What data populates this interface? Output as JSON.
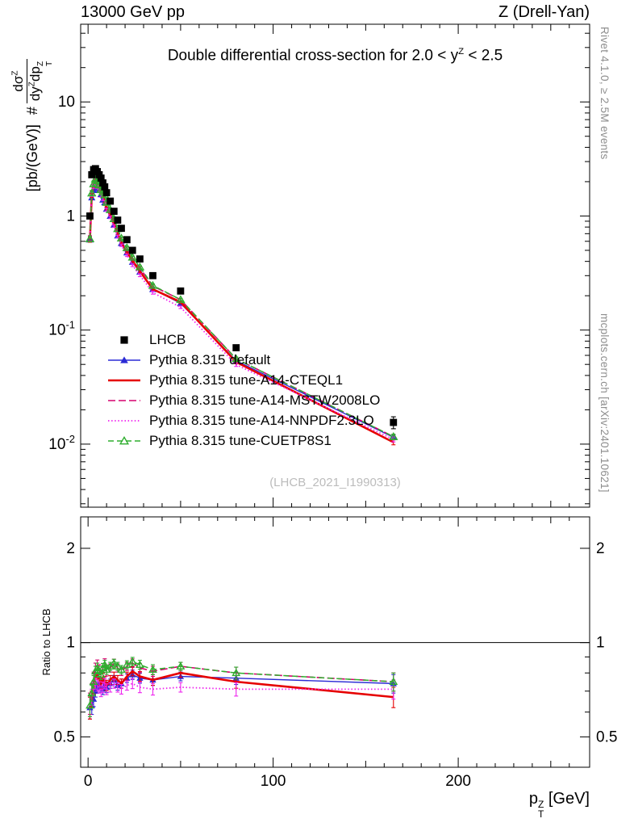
{
  "header": {
    "left": "13000 GeV pp",
    "right": "Z (Drell-Yan)"
  },
  "labels": {
    "plot_title": {
      "pre": "Double differential cross-section for 2.0 < y",
      "sup": "Z",
      "post": " < 2.5"
    },
    "ylabel": {
      "hash": "#",
      "num_base": "dσ",
      "num_sup": "Z",
      "den1_base": "dy",
      "den1_sup": "Z",
      "den2_base": "dp",
      "den2_sup": "Z",
      "den2_sub": "T",
      "units": "[pb/(GeV)]"
    },
    "xlabel": {
      "base": "p",
      "sup": "Z",
      "sub": "T",
      "units": " [GeV]"
    },
    "ratio_ylabel": "Ratio to LHCB",
    "watermark": "(LHCB_2021_I1990313)",
    "side_top": "Rivet 4.1.0, ≥ 2.5M events",
    "side_bottom": "mcplots.cern.ch [arXiv:2401.10621]"
  },
  "chart_data": {
    "type": "line",
    "title": "Double differential cross-section for 2.0 < y^Z < 2.5",
    "xlabel": "p_T^Z [GeV]",
    "ylabel": "# dσ^Z/(dy^Z dp_T^Z) [pb/(GeV)]",
    "ratio_label": "Ratio to LHCB",
    "legend_position": "inside-left",
    "grid": false,
    "x_axis": {
      "lim": [
        -4,
        271
      ],
      "minor_step": 10,
      "ticks": [
        {
          "v": 0,
          "t": "0"
        },
        {
          "v": 100,
          "t": "100"
        },
        {
          "v": 200,
          "t": "200"
        }
      ]
    },
    "y_axis": {
      "log": true,
      "lim": [
        0.0028,
        48
      ],
      "ticks": [
        {
          "v": 10,
          "t": "10"
        },
        {
          "v": 1,
          "t": "1"
        },
        {
          "v": 0.1,
          "t": "10",
          "e": "-1"
        },
        {
          "v": 0.01,
          "t": "10",
          "e": "-2"
        }
      ]
    },
    "ratio_axis": {
      "log": true,
      "lim": [
        0.4,
        2.52
      ],
      "ticks": [
        {
          "v": 2,
          "t": "2"
        },
        {
          "v": 1,
          "t": "1"
        },
        {
          "v": 0.5,
          "t": "0.5"
        }
      ],
      "minor": [
        0.6,
        0.7,
        0.8,
        0.9
      ]
    },
    "x": [
      1,
      2,
      3,
      4,
      5,
      6,
      7,
      8,
      9,
      10,
      12,
      14,
      16,
      18,
      21,
      24,
      28,
      35,
      50,
      80,
      165
    ],
    "data_series": {
      "name": "LHCB",
      "color": "#000000",
      "marker": "square",
      "y": [
        1.0,
        2.3,
        2.55,
        2.6,
        2.45,
        2.3,
        2.15,
        1.95,
        1.8,
        1.6,
        1.35,
        1.1,
        0.92,
        0.78,
        0.62,
        0.5,
        0.42,
        0.3,
        0.22,
        0.07,
        0.0155
      ],
      "yerr_frac": [
        0.05,
        0.04,
        0.04,
        0.035,
        0.035,
        0.035,
        0.035,
        0.035,
        0.035,
        0.035,
        0.03,
        0.03,
        0.03,
        0.03,
        0.03,
        0.03,
        0.035,
        0.035,
        0.03,
        0.05,
        0.12
      ]
    },
    "ratio_err": [
      0.05,
      0.04,
      0.035,
      0.03,
      0.03,
      0.03,
      0.028,
      0.028,
      0.028,
      0.028,
      0.025,
      0.025,
      0.025,
      0.025,
      0.025,
      0.027,
      0.028,
      0.03,
      0.025,
      0.035,
      0.05
    ],
    "mc_series": [
      {
        "name": "Pythia 8.315 default",
        "color": "#2b2bd5",
        "dash": "",
        "width": 1.4,
        "marker": "triangle",
        "ratio": [
          0.62,
          0.63,
          0.66,
          0.7,
          0.72,
          0.74,
          0.72,
          0.71,
          0.73,
          0.72,
          0.74,
          0.76,
          0.73,
          0.74,
          0.77,
          0.79,
          0.77,
          0.76,
          0.78,
          0.77,
          0.74
        ]
      },
      {
        "name": "Pythia 8.315 tune-A14-CTEQL1",
        "color": "#e60000",
        "dash": "",
        "width": 2.6,
        "marker": null,
        "ratio": [
          0.62,
          0.66,
          0.72,
          0.77,
          0.79,
          0.76,
          0.74,
          0.77,
          0.75,
          0.73,
          0.76,
          0.78,
          0.76,
          0.74,
          0.78,
          0.81,
          0.78,
          0.76,
          0.8,
          0.75,
          0.67
        ]
      },
      {
        "name": "Pythia 8.315 tune-A14-MSTW2008LO",
        "color": "#d6006e",
        "dash": "9,4",
        "width": 1.6,
        "marker": null,
        "ratio": [
          0.64,
          0.7,
          0.77,
          0.83,
          0.85,
          0.82,
          0.79,
          0.83,
          0.86,
          0.81,
          0.83,
          0.86,
          0.83,
          0.81,
          0.84,
          0.86,
          0.83,
          0.81,
          0.84,
          0.8,
          0.75
        ]
      },
      {
        "name": "Pythia 8.315 tune-A14-NNPDF2.3LO",
        "color": "#ee22ee",
        "dash": "1.5,2.6",
        "width": 1.8,
        "marker": null,
        "ratio": [
          0.63,
          0.67,
          0.71,
          0.74,
          0.73,
          0.72,
          0.7,
          0.72,
          0.74,
          0.71,
          0.72,
          0.74,
          0.72,
          0.71,
          0.73,
          0.74,
          0.72,
          0.71,
          0.72,
          0.71,
          0.71
        ]
      },
      {
        "name": "Pythia 8.315 tune-CUETP8S1",
        "color": "#2fae2f",
        "dash": "7,4",
        "width": 1.5,
        "marker": "triangle-open",
        "ratio": [
          0.63,
          0.69,
          0.75,
          0.81,
          0.83,
          0.81,
          0.79,
          0.83,
          0.85,
          0.82,
          0.84,
          0.86,
          0.84,
          0.82,
          0.85,
          0.87,
          0.85,
          0.82,
          0.84,
          0.8,
          0.75
        ]
      }
    ]
  }
}
